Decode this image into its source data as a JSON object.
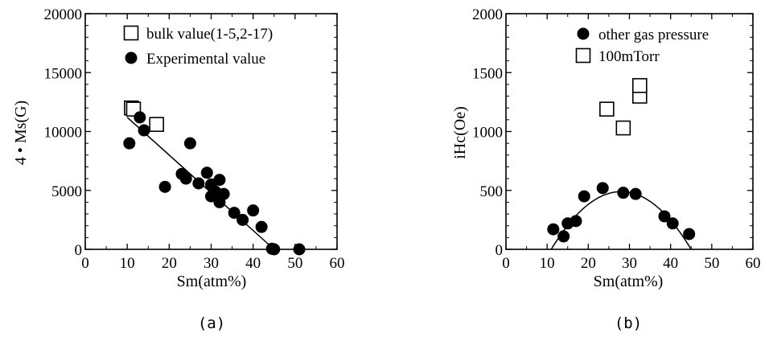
{
  "chart_data": [
    {
      "type": "scatter",
      "panel_label": "(a)",
      "xlabel": "Sm(atm%)",
      "ylabel": "4 • Ms(G)",
      "xlim": [
        0,
        60
      ],
      "ylim": [
        0,
        20000
      ],
      "xticks": [
        0,
        10,
        20,
        30,
        40,
        50,
        60
      ],
      "yticks": [
        0,
        5000,
        10000,
        15000,
        20000
      ],
      "grid": false,
      "legend_position": "top-right",
      "series": [
        {
          "name": "bulk value(1-5,2-17)",
          "marker": "open-square",
          "x": [
            11,
            11.5,
            17
          ],
          "y": [
            12000,
            11900,
            10600
          ]
        },
        {
          "name": "Experimental value",
          "marker": "filled-circle",
          "x": [
            10.5,
            13,
            14,
            19,
            23,
            24,
            25,
            27,
            29,
            30,
            30,
            31,
            32,
            32,
            33,
            35.5,
            37.5,
            40,
            42,
            44.5,
            45,
            51
          ],
          "y": [
            9000,
            11200,
            10100,
            5300,
            6400,
            6000,
            9000,
            5600,
            6500,
            4500,
            5500,
            4900,
            4000,
            5900,
            4700,
            3100,
            2500,
            3300,
            1900,
            50,
            0,
            0
          ]
        }
      ],
      "fit_line": {
        "x": [
          10,
          45
        ],
        "y": [
          11200,
          0
        ]
      }
    },
    {
      "type": "scatter",
      "panel_label": "(b)",
      "xlabel": "Sm(atm%)",
      "ylabel": "iHc(Oe)",
      "xlim": [
        0,
        60
      ],
      "ylim": [
        0,
        2000
      ],
      "xticks": [
        0,
        10,
        20,
        30,
        40,
        50,
        60
      ],
      "yticks": [
        0,
        500,
        1000,
        1500,
        2000
      ],
      "grid": false,
      "legend_position": "top-right",
      "series": [
        {
          "name": "other gas pressure",
          "marker": "filled-circle",
          "x": [
            11.5,
            14,
            15,
            17,
            19,
            23.5,
            28.5,
            31.5,
            38.5,
            40.5,
            44.5
          ],
          "y": [
            170,
            110,
            220,
            240,
            450,
            520,
            480,
            470,
            280,
            220,
            130
          ]
        },
        {
          "name": "100mTorr",
          "marker": "open-square",
          "x": [
            24.5,
            28.5,
            32.5,
            32.5
          ],
          "y": [
            1190,
            1030,
            1300,
            1390
          ]
        }
      ],
      "fit_curve": {
        "type": "parabola",
        "vertex": [
          28,
          490
        ],
        "roots": [
          11,
          45
        ]
      }
    }
  ]
}
